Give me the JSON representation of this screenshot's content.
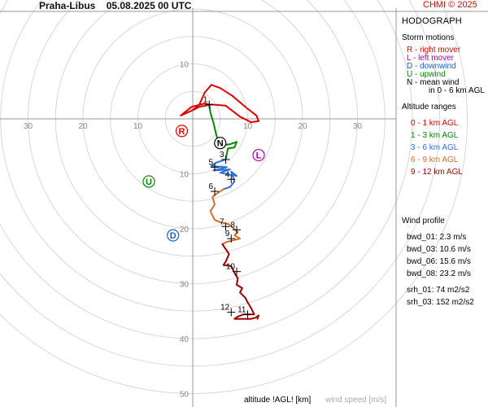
{
  "header": {
    "station": "Praha-Libus",
    "datetime": "05.08.2025 00 UTC",
    "copyright": "CHMI © 2025"
  },
  "panel": {
    "title": "HODOGRAPH",
    "storm_motions": {
      "heading": "Storm motions",
      "items": [
        {
          "text": "R - right mover",
          "color": "#dd0000"
        },
        {
          "text": "L - left mover",
          "color": "#aa00aa"
        },
        {
          "text": "D - downwind",
          "color": "#1f5fbf"
        },
        {
          "text": "U - upwind",
          "color": "#008800"
        },
        {
          "text": "N - mean wind",
          "color": "#000000"
        },
        {
          "text": "in 0 - 6 km AGL",
          "color": "#000000"
        }
      ]
    },
    "altitude_ranges": {
      "heading": "Altitude ranges",
      "items": [
        {
          "text": "0 - 1 km AGL",
          "color": "#dd0000"
        },
        {
          "text": "1 - 3 km AGL",
          "color": "#008800"
        },
        {
          "text": "3 - 6 km AGL",
          "color": "#2f6fd0"
        },
        {
          "text": "6 - 9 km AGL",
          "color": "#d07030"
        },
        {
          "text": "9 - 12 km AGL",
          "color": "#990000"
        }
      ]
    },
    "wind_profile": {
      "heading": "Wind profile",
      "items": [
        "bwd_01: 2.3 m/s",
        "bwd_03: 10.6 m/s",
        "bwd_06: 15.6 m/s",
        "bwd_08: 23.2 m/s",
        "srh_01: 74 m2/s2",
        "srh_03: 152 m2/s2"
      ]
    }
  },
  "footer": {
    "altitude_label": "altitude !AGL! [km]",
    "wind_speed_label": "wind speed [m/s]"
  },
  "chart_data": {
    "type": "line",
    "title": "HODOGRAPH",
    "ring_interval": 5,
    "max_ring": 50,
    "x_ticks": [
      {
        "value": -30,
        "label": "30"
      },
      {
        "value": -20,
        "label": "20"
      },
      {
        "value": -10,
        "label": "10"
      },
      {
        "value": 10,
        "label": "10"
      },
      {
        "value": 20,
        "label": "20"
      },
      {
        "value": 30,
        "label": "30"
      }
    ],
    "y_ticks": [
      {
        "value": 10,
        "label": "10"
      },
      {
        "value": -10,
        "label": "10"
      },
      {
        "value": -20,
        "label": "20"
      },
      {
        "value": -30,
        "label": "30"
      },
      {
        "value": -40,
        "label": "40"
      },
      {
        "value": -50,
        "label": "50"
      }
    ],
    "series": [
      {
        "name": "0 - 1 km AGL",
        "color": "#dd0000",
        "points": [
          [
            0.0,
            1.6
          ],
          [
            1.2,
            2.6
          ],
          [
            2.2,
            4.8
          ],
          [
            3.4,
            6.2
          ],
          [
            5.0,
            5.6
          ],
          [
            7.2,
            4.2
          ],
          [
            9.8,
            2.0
          ],
          [
            11.6,
            0.6
          ],
          [
            12.0,
            -0.4
          ],
          [
            10.6,
            -0.6
          ],
          [
            8.6,
            0.4
          ],
          [
            6.0,
            2.4
          ],
          [
            3.4,
            2.6
          ],
          [
            1.2,
            2.2
          ],
          [
            -0.4,
            1.4
          ],
          [
            -2.2,
            0.6
          ],
          [
            -0.2,
            2.2
          ],
          [
            2.2,
            2.8
          ],
          [
            3.0,
            2.6
          ]
        ]
      },
      {
        "name": "1 - 3 km AGL",
        "color": "#008800",
        "points": [
          [
            3.0,
            2.6
          ],
          [
            3.2,
            1.2
          ],
          [
            3.8,
            -0.8
          ],
          [
            4.2,
            -2.6
          ],
          [
            4.6,
            -4.0
          ],
          [
            5.6,
            -4.8
          ],
          [
            6.8,
            -4.6
          ],
          [
            8.0,
            -4.2
          ],
          [
            7.6,
            -5.2
          ],
          [
            6.4,
            -5.4
          ],
          [
            6.0,
            -7.4
          ]
        ]
      },
      {
        "name": "3 - 6 km AGL",
        "color": "#2f6fd0",
        "points": [
          [
            6.0,
            -7.4
          ],
          [
            4.2,
            -8.0
          ],
          [
            3.4,
            -8.6
          ],
          [
            6.2,
            -8.8
          ],
          [
            3.8,
            -9.4
          ],
          [
            6.8,
            -9.2
          ],
          [
            5.0,
            -9.8
          ],
          [
            8.0,
            -10.4
          ],
          [
            7.0,
            -9.6
          ],
          [
            7.6,
            -11.4
          ],
          [
            6.8,
            -12.4
          ],
          [
            5.6,
            -12.8
          ]
        ]
      },
      {
        "name": "6 - 9 km AGL",
        "color": "#d07030",
        "points": [
          [
            5.6,
            -12.8
          ],
          [
            4.4,
            -13.6
          ],
          [
            3.6,
            -14.2
          ],
          [
            4.0,
            -15.6
          ],
          [
            3.2,
            -16.8
          ],
          [
            4.0,
            -18.4
          ],
          [
            5.0,
            -18.8
          ],
          [
            6.6,
            -19.2
          ],
          [
            8.2,
            -20.6
          ],
          [
            7.6,
            -21.2
          ],
          [
            8.6,
            -21.8
          ],
          [
            6.2,
            -22.4
          ],
          [
            5.4,
            -22.8
          ]
        ]
      },
      {
        "name": "9 - 12 km AGL",
        "color": "#990000",
        "points": [
          [
            5.4,
            -22.8
          ],
          [
            6.6,
            -24.6
          ],
          [
            6.0,
            -26.0
          ],
          [
            5.6,
            -26.6
          ],
          [
            7.0,
            -26.8
          ],
          [
            7.4,
            -27.6
          ],
          [
            7.8,
            -28.4
          ],
          [
            8.2,
            -29.0
          ],
          [
            8.0,
            -30.2
          ],
          [
            9.0,
            -30.8
          ],
          [
            8.6,
            -31.6
          ],
          [
            9.6,
            -32.6
          ],
          [
            10.0,
            -33.4
          ],
          [
            10.6,
            -34.4
          ],
          [
            11.2,
            -35.6
          ],
          [
            9.2,
            -35.6
          ],
          [
            8.2,
            -36.0
          ],
          [
            7.6,
            -36.4
          ],
          [
            10.6,
            -36.4
          ],
          [
            11.4,
            -36.2
          ],
          [
            12.0,
            -35.8
          ],
          [
            11.8,
            -36.4
          ]
        ]
      }
    ],
    "altitude_marks": [
      {
        "label": "1",
        "x": 3.0,
        "y": 2.6
      },
      {
        "label": "3",
        "x": 6.0,
        "y": -7.4
      },
      {
        "label": "4",
        "x": 7.0,
        "y": -11.0
      },
      {
        "label": "5",
        "x": 4.0,
        "y": -8.8
      },
      {
        "label": "6",
        "x": 4.0,
        "y": -13.2
      },
      {
        "label": "7",
        "x": 6.0,
        "y": -19.6
      },
      {
        "label": "8",
        "x": 8.0,
        "y": -20.2
      },
      {
        "label": "9",
        "x": 7.0,
        "y": -21.8
      },
      {
        "label": "10",
        "x": 8.0,
        "y": -27.8
      },
      {
        "label": "11",
        "x": 10.0,
        "y": -35.6
      },
      {
        "label": "12",
        "x": 7.0,
        "y": -35.2
      }
    ],
    "storm_motion_markers": [
      {
        "label": "R",
        "x": -2.0,
        "y": -2.2,
        "color": "#dd0000"
      },
      {
        "label": "L",
        "x": 12.0,
        "y": -6.6,
        "color": "#aa00aa"
      },
      {
        "label": "D",
        "x": -3.6,
        "y": -21.2,
        "color": "#1f5fbf"
      },
      {
        "label": "U",
        "x": -8.0,
        "y": -11.4,
        "color": "#008800"
      },
      {
        "label": "N",
        "x": 5.0,
        "y": -4.4,
        "color": "#000000"
      }
    ]
  }
}
